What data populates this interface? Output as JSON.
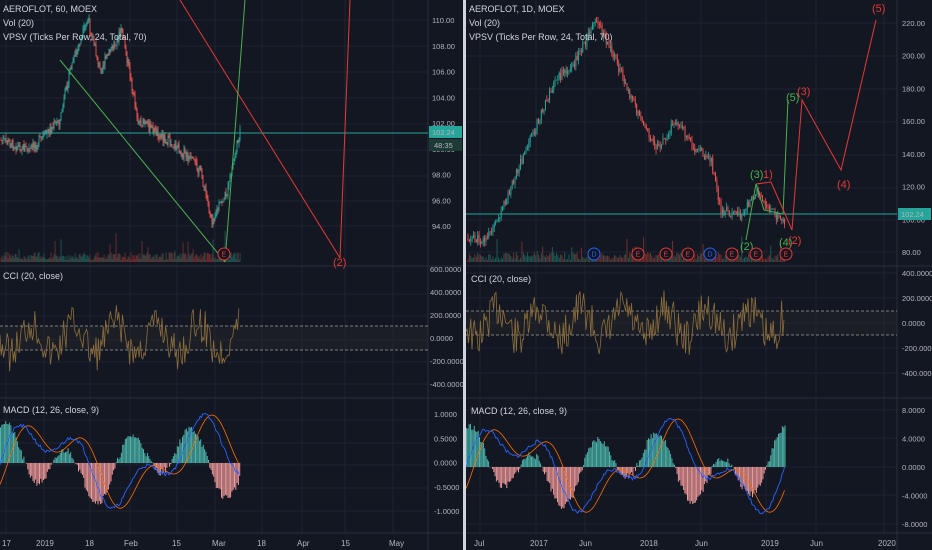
{
  "left": {
    "header": {
      "symbol_line": "AEROFLOT, 60, MOEX",
      "vol": "Vol (20)",
      "vpsv": "VPSV (Ticks Per Row, 24, Total, 70)"
    },
    "price_axis": [
      "110.00",
      "108.00",
      "106.00",
      "104.00",
      "102.00",
      "100.00",
      "98.00",
      "96.00",
      "94.00"
    ],
    "price_tag": "102.24",
    "countdown": "48:35",
    "cci_title": "CCI (20, close)",
    "cci_axis": [
      "600.0000",
      "400.0000",
      "200.0000",
      "0.0000",
      "-200.0000",
      "-400.0000"
    ],
    "macd_title": "MACD (12, 26, close, 9)",
    "macd_axis": [
      "1.0000",
      "0.5000",
      "0.0000",
      "-0.5000",
      "-1.0000"
    ],
    "x_axis": [
      "17",
      "2019",
      "18",
      "Feb",
      "15",
      "Mar",
      "18",
      "Apr",
      "15",
      "May"
    ],
    "wave_cut_label": "(2)",
    "events": [
      "E"
    ]
  },
  "right": {
    "header": {
      "symbol_line": "AEROFLOT, 1D, MOEX",
      "vol": "Vol (20)",
      "vpsv": "VPSV (Ticks Per Row, 24, Total, 70)"
    },
    "price_axis": [
      "220.00",
      "200.00",
      "180.00",
      "160.00",
      "140.00",
      "120.00",
      "100.00",
      "80.00"
    ],
    "price_tag": "102.24",
    "cci_title": "CCI (20, close)",
    "cci_axis": [
      "400.0000",
      "200.0000",
      "0.0000",
      "-200.0000",
      "-400.0000"
    ],
    "macd_title": "MACD (12, 26, close, 9)",
    "macd_axis": [
      "8.0000",
      "4.0000",
      "0.0000",
      "-4.0000",
      "-8.0000"
    ],
    "x_axis": [
      "Jul",
      "2017",
      "Jun",
      "2018",
      "Jun",
      "2019",
      "Jun",
      "2020"
    ],
    "wave_labels_green": [
      "(2)",
      "(3)",
      "(4)",
      "(5)"
    ],
    "wave_labels_red": [
      "1)",
      "(2)",
      "(3)",
      "(4)",
      "(5)"
    ],
    "events": [
      "D",
      "E",
      "E",
      "E",
      "D",
      "E",
      "E",
      "E"
    ]
  },
  "colors": {
    "background": "#131722",
    "grid": "#1f2330",
    "candle_up": "#26a69a",
    "candle_down": "#ef5350",
    "price_line": "#26a69a",
    "wave_green": "#4caf50",
    "wave_red": "#e53935",
    "cci": "#8d6e3c",
    "macd": "#2962ff",
    "signal": "#ff6d00"
  }
}
